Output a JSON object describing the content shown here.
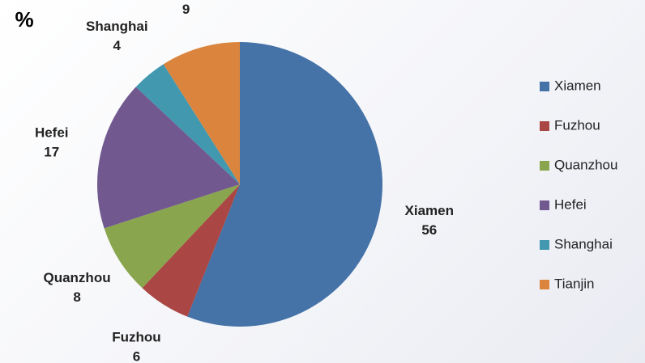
{
  "chart_data": {
    "type": "pie",
    "title": "%",
    "categories": [
      "Xiamen",
      "Fuzhou",
      "Quanzhou",
      "Hefei",
      "Shanghai",
      "Tianjin"
    ],
    "values": [
      56,
      6,
      8,
      17,
      4,
      9
    ],
    "colors": [
      "#4572a7",
      "#aa4643",
      "#89a54e",
      "#71588f",
      "#4198af",
      "#db843d"
    ],
    "legend": "right"
  }
}
